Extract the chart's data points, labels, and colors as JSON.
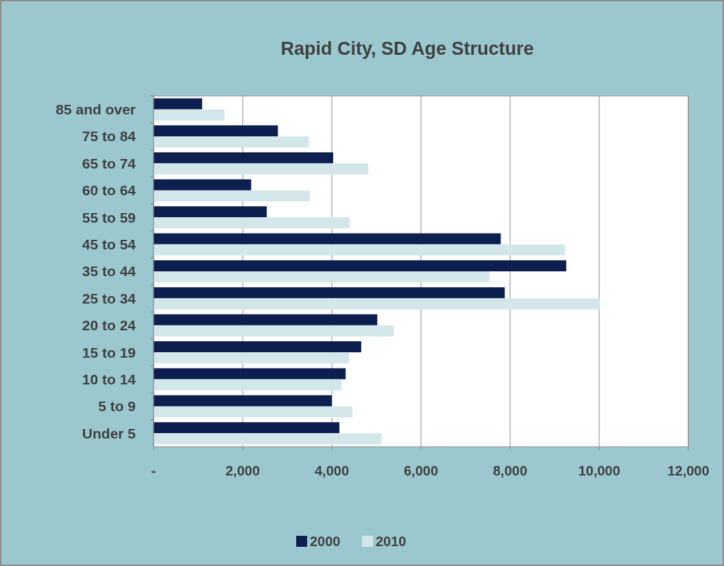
{
  "chart_data": {
    "type": "bar",
    "orientation": "horizontal",
    "title": "Rapid City, SD Age Structure",
    "categories": [
      "85 and over",
      "75 to 84",
      "65 to 74",
      "60 to 64",
      "55 to 59",
      "45 to 54",
      "35 to 44",
      "25 to 34",
      "20 to 24",
      "15 to 19",
      "10 to 14",
      "5 to 9",
      "Under 5"
    ],
    "series": [
      {
        "name": "2000",
        "color": "#0c1f4f",
        "values": [
          1090,
          2790,
          4030,
          2190,
          2540,
          7790,
          9260,
          7880,
          5020,
          4660,
          4310,
          4000,
          4170
        ]
      },
      {
        "name": "2010",
        "color": "#d3e7eb",
        "values": [
          1590,
          3480,
          4820,
          3510,
          4400,
          9230,
          7540,
          10020,
          5390,
          4390,
          4220,
          4460,
          5110
        ]
      }
    ],
    "xlim": [
      0,
      12000
    ],
    "xticks": [
      {
        "value": 0,
        "label": "-"
      },
      {
        "value": 2000,
        "label": "2,000"
      },
      {
        "value": 4000,
        "label": "4,000"
      },
      {
        "value": 6000,
        "label": "6,000"
      },
      {
        "value": 8000,
        "label": "8,000"
      },
      {
        "value": 10000,
        "label": "10,000"
      },
      {
        "value": 12000,
        "label": "12,000"
      }
    ],
    "grid": "x",
    "legend": "bottom"
  }
}
